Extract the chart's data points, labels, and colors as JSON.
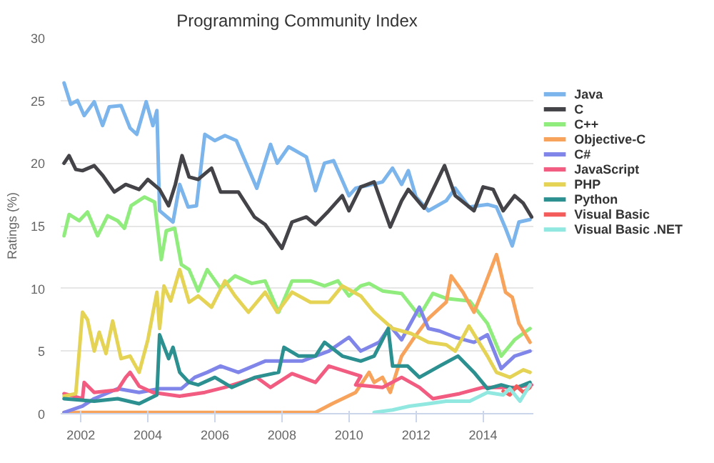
{
  "chart_data": {
    "type": "line",
    "title": "Programming Community Index",
    "ylabel": "Ratings (%)",
    "xlim": [
      2001.4,
      2015.5
    ],
    "xticks": [
      2002,
      2004,
      2006,
      2008,
      2010,
      2012,
      2014
    ],
    "ylim": [
      0,
      30
    ],
    "yticks": [
      0,
      5,
      10,
      15,
      20,
      25,
      30
    ],
    "grid": "y",
    "legend": "right",
    "marker": "none",
    "line_style": "solid",
    "series": [
      {
        "name": "Java",
        "color": "#7cb5ec",
        "x": [
          2001.5,
          2001.7,
          2001.9,
          2002.1,
          2002.4,
          2002.65,
          2002.85,
          2003.2,
          2003.47,
          2003.67,
          2003.95,
          2004.15,
          2004.27,
          2004.35,
          2004.75,
          2004.95,
          2005.2,
          2005.45,
          2005.7,
          2006.0,
          2006.3,
          2006.64,
          2007.25,
          2007.66,
          2007.86,
          2008.2,
          2008.73,
          2009.0,
          2009.27,
          2009.54,
          2010.0,
          2010.2,
          2011.0,
          2011.3,
          2011.57,
          2011.77,
          2012.0,
          2012.37,
          2012.9,
          2013.17,
          2013.58,
          2014.13,
          2014.4,
          2014.67,
          2014.87,
          2015.07,
          2015.4
        ],
        "values": [
          26.4,
          24.7,
          25,
          23.8,
          24.9,
          23,
          24.5,
          24.6,
          22.8,
          22.3,
          24.9,
          23,
          24.2,
          16.2,
          15.3,
          18.3,
          16.5,
          16.6,
          22.3,
          21.8,
          22.2,
          21.8,
          18,
          21.5,
          20,
          21.3,
          20.5,
          17.8,
          20,
          20.2,
          17.4,
          18,
          18.5,
          19.6,
          18.3,
          19.4,
          17.3,
          16.2,
          17,
          18,
          16.5,
          16.7,
          16.5,
          14.8,
          13.4,
          15.3,
          15.5
        ]
      },
      {
        "name": "C",
        "color": "#434348",
        "x": [
          2001.5,
          2001.65,
          2001.85,
          2002.05,
          2002.4,
          2002.66,
          2003.0,
          2003.34,
          2003.74,
          2004.0,
          2004.35,
          2004.62,
          2004.82,
          2005.02,
          2005.23,
          2005.5,
          2005.9,
          2006.17,
          2006.7,
          2007.18,
          2007.5,
          2008.0,
          2008.3,
          2008.73,
          2009.0,
          2009.4,
          2009.8,
          2010.0,
          2010.35,
          2010.75,
          2011.23,
          2011.57,
          2011.77,
          2012.24,
          2012.85,
          2013.17,
          2013.73,
          2014.0,
          2014.3,
          2014.6,
          2014.94,
          2015.2,
          2015.45
        ],
        "values": [
          20,
          20.6,
          19.5,
          19.4,
          19.8,
          19,
          17.7,
          18.3,
          17.9,
          18.7,
          17.9,
          16.6,
          18.3,
          20.6,
          18.9,
          18.7,
          19.6,
          17.7,
          17.7,
          15.7,
          15.1,
          13.2,
          15.3,
          15.7,
          15.1,
          16.2,
          17.4,
          16.2,
          18.1,
          18.5,
          14.9,
          17,
          17.9,
          16.4,
          19.8,
          17.4,
          16.2,
          18.1,
          17.9,
          16.2,
          17.4,
          16.8,
          15.7
        ]
      },
      {
        "name": "C++",
        "color": "#90ed7d",
        "x": [
          2001.5,
          2001.65,
          2001.95,
          2002.2,
          2002.5,
          2002.8,
          2003.1,
          2003.3,
          2003.5,
          2003.9,
          2004.2,
          2004.4,
          2004.55,
          2004.8,
          2005.0,
          2005.23,
          2005.5,
          2005.77,
          2006.17,
          2006.6,
          2007.1,
          2007.5,
          2007.9,
          2008.3,
          2008.85,
          2009.27,
          2009.67,
          2010.0,
          2010.35,
          2010.6,
          2011.0,
          2011.57,
          2012.1,
          2012.5,
          2012.9,
          2013.6,
          2014.13,
          2014.54,
          2014.94,
          2015.4
        ],
        "values": [
          14.2,
          15.9,
          15.4,
          16.1,
          14.2,
          15.8,
          15.4,
          14.8,
          16.6,
          17.3,
          16.9,
          12.3,
          14.6,
          14.8,
          11.9,
          11.5,
          9.8,
          11.5,
          10,
          11,
          10.4,
          10.6,
          8.1,
          10.6,
          10.6,
          10.2,
          10.6,
          9.4,
          10.2,
          10.4,
          9.8,
          9.6,
          7.8,
          9.6,
          9.2,
          9,
          7.2,
          4.6,
          5.9,
          6.8
        ]
      },
      {
        "name": "Objective-C",
        "color": "#f7a35c",
        "x": [
          2001.5,
          2003.0,
          2005.0,
          2007.0,
          2009.0,
          2009.5,
          2010.2,
          2010.6,
          2010.75,
          2011.0,
          2011.23,
          2011.57,
          2011.9,
          2012.37,
          2012.9,
          2013.05,
          2013.4,
          2013.73,
          2014.0,
          2014.4,
          2014.67,
          2014.87,
          2015.07,
          2015.4
        ],
        "values": [
          0.1,
          0.1,
          0.1,
          0.1,
          0.1,
          0.8,
          1.7,
          3.3,
          2.5,
          2.9,
          1.7,
          4.6,
          5.9,
          7.6,
          8.9,
          11,
          9.7,
          8.1,
          9.9,
          12.7,
          9.7,
          9.3,
          7.2,
          5.7
        ]
      },
      {
        "name": "C#",
        "color": "#8085e9",
        "x": [
          2001.5,
          2002.05,
          2002.4,
          2003.1,
          2003.74,
          2004.35,
          2005.0,
          2005.4,
          2005.77,
          2006.17,
          2006.7,
          2007.5,
          2008.06,
          2008.6,
          2009.0,
          2009.4,
          2010.0,
          2010.35,
          2010.9,
          2011.23,
          2011.57,
          2012.1,
          2012.37,
          2012.7,
          2013.17,
          2013.73,
          2014.13,
          2014.54,
          2014.94,
          2015.4
        ],
        "values": [
          0.1,
          0.6,
          1.2,
          2,
          1.7,
          2,
          2,
          2.9,
          3.3,
          3.8,
          3.3,
          4.2,
          4.2,
          4.2,
          4.6,
          5,
          6.1,
          5,
          5.7,
          7,
          5.9,
          8.5,
          6.8,
          6.6,
          6.1,
          5.7,
          6.3,
          3.6,
          4.6,
          5
        ]
      },
      {
        "name": "JavaScript",
        "color": "#f15c80",
        "x": [
          2001.5,
          2002.05,
          2002.1,
          2002.4,
          2003.1,
          2003.34,
          2003.47,
          2003.74,
          2004.15,
          2004.95,
          2005.7,
          2006.3,
          2007.25,
          2007.66,
          2008.3,
          2009.0,
          2009.4,
          2010.35,
          2010.2,
          2011.0,
          2011.57,
          2012.1,
          2012.5,
          2013.3,
          2014.0,
          2014.54,
          2014.94,
          2015.45
        ],
        "values": [
          1.6,
          1.2,
          2.5,
          1.7,
          1.9,
          2.9,
          3.3,
          2.2,
          1.7,
          1.4,
          1.7,
          2.1,
          2.9,
          2.1,
          3.2,
          2.5,
          3.8,
          3.0,
          2.3,
          2.1,
          2.9,
          2.1,
          1.2,
          1.6,
          2.1,
          2.1,
          2.1,
          2.3
        ]
      },
      {
        "name": "PHP",
        "color": "#e4d354",
        "x": [
          2001.5,
          2001.85,
          2002.05,
          2002.2,
          2002.4,
          2002.55,
          2002.75,
          2002.95,
          2003.2,
          2003.47,
          2003.74,
          2004.0,
          2004.27,
          2004.35,
          2004.48,
          2004.68,
          2004.95,
          2005.23,
          2005.5,
          2005.9,
          2006.3,
          2006.6,
          2007.0,
          2007.5,
          2007.86,
          2008.3,
          2008.85,
          2009.4,
          2009.8,
          2010.35,
          2010.75,
          2011.3,
          2011.85,
          2012.37,
          2012.9,
          2013.17,
          2013.58,
          2014.13,
          2014.4,
          2014.8,
          2015.2,
          2015.4
        ],
        "values": [
          1.4,
          1.6,
          8.1,
          7.5,
          5,
          6.5,
          4.8,
          7.4,
          4.4,
          4.6,
          3.3,
          5.9,
          9.7,
          6.8,
          10.2,
          9,
          11.5,
          8.9,
          9.4,
          8.5,
          10.6,
          9.4,
          8.1,
          9.7,
          8.1,
          9.7,
          8.9,
          8.9,
          10.2,
          9.4,
          8.1,
          6.8,
          6.4,
          5.7,
          5.5,
          5,
          7,
          4.6,
          3.3,
          2.9,
          3.5,
          3.3
        ]
      },
      {
        "name": "Python",
        "color": "#2b908f",
        "x": [
          2001.5,
          2002.4,
          2003.1,
          2003.74,
          2004.27,
          2004.35,
          2004.62,
          2004.75,
          2004.95,
          2005.23,
          2005.5,
          2006.0,
          2006.5,
          2007.2,
          2007.9,
          2008.06,
          2008.5,
          2009.0,
          2009.27,
          2009.8,
          2010.35,
          2010.75,
          2011.17,
          2011.3,
          2011.75,
          2012.1,
          2012.7,
          2013.25,
          2013.73,
          2014.13,
          2014.54,
          2014.94,
          2015.4
        ],
        "values": [
          1.2,
          1.0,
          1.2,
          0.8,
          1.5,
          6.3,
          4.4,
          5.3,
          3.3,
          2.5,
          2.3,
          2.9,
          2.1,
          2.9,
          3.3,
          5.3,
          4.6,
          4.6,
          5.7,
          4.6,
          4.2,
          4.6,
          6.8,
          3.8,
          3.8,
          2.9,
          3.8,
          4.6,
          3.3,
          2,
          2.3,
          2,
          2.5
        ]
      },
      {
        "name": "Visual Basic",
        "color": "#f45b5b",
        "x": [
          2014.6,
          2014.8,
          2015.0,
          2015.2,
          2015.4
        ],
        "values": [
          1.8,
          1.5,
          2.2,
          1.7,
          2.1
        ]
      },
      {
        "name": "Visual Basic .NET",
        "color": "#91e8e1",
        "x": [
          2010.75,
          2011.3,
          2011.8,
          2012.37,
          2012.9,
          2013.6,
          2014.13,
          2014.6,
          2014.8,
          2015.1,
          2015.4
        ],
        "values": [
          0.1,
          0.3,
          0.6,
          0.8,
          1.0,
          1.0,
          1.7,
          1.5,
          2,
          1,
          2.3
        ]
      }
    ]
  }
}
